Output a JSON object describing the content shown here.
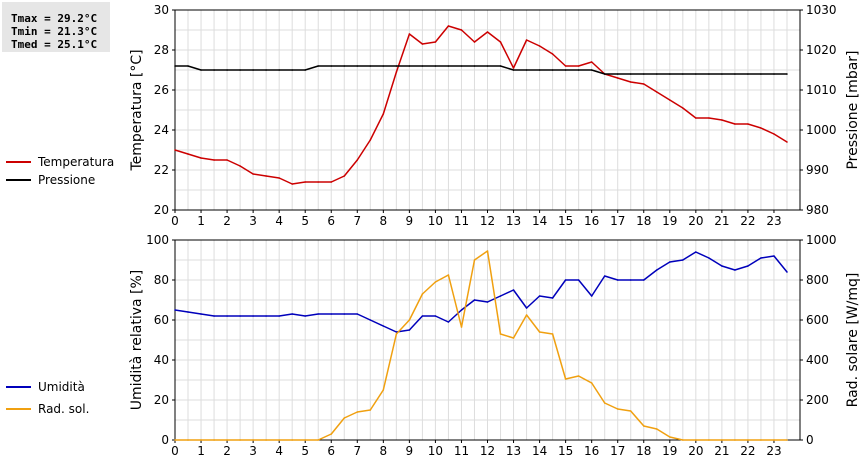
{
  "stats": {
    "tmax": "Tmax = 29.2°C",
    "tmin": "Tmin = 21.3°C",
    "tmed": "Tmed = 25.1°C"
  },
  "chart_data": [
    {
      "type": "line",
      "xlabel": "",
      "ylabel": "Temperatura [°C]",
      "ylabel_right": "Pressione [mbar]",
      "xlim": [
        0,
        24
      ],
      "ylim": [
        20,
        30
      ],
      "ylim_right": [
        980,
        1030
      ],
      "xticks": [
        0,
        1,
        2,
        3,
        4,
        5,
        6,
        7,
        8,
        9,
        10,
        11,
        12,
        13,
        14,
        15,
        16,
        17,
        18,
        19,
        20,
        21,
        22,
        23
      ],
      "yticks": [
        20,
        22,
        24,
        26,
        28,
        30
      ],
      "yticks_right": [
        980,
        990,
        1000,
        1010,
        1020,
        1030
      ],
      "grid": true,
      "legend_position": "left",
      "series": [
        {
          "name": "Temperatura",
          "color": "#cc0000",
          "axis": "left",
          "x": [
            0,
            0.5,
            1,
            1.5,
            2,
            2.5,
            3,
            3.5,
            4,
            4.5,
            5,
            5.5,
            6,
            6.5,
            7,
            7.5,
            8,
            8.5,
            9,
            9.5,
            10,
            10.5,
            11,
            11.5,
            12,
            12.5,
            13,
            13.5,
            14,
            14.5,
            15,
            15.5,
            16,
            16.5,
            17,
            17.5,
            18,
            18.5,
            19,
            19.5,
            20,
            20.5,
            21,
            21.5,
            22,
            22.5,
            23,
            23.5
          ],
          "values": [
            23.0,
            22.8,
            22.6,
            22.5,
            22.5,
            22.2,
            21.8,
            21.7,
            21.6,
            21.3,
            21.4,
            21.4,
            21.4,
            21.7,
            22.5,
            23.5,
            24.8,
            26.9,
            28.8,
            28.3,
            28.4,
            29.2,
            29.0,
            28.4,
            28.9,
            28.4,
            27.1,
            28.5,
            28.2,
            27.8,
            27.2,
            27.2,
            27.4,
            26.8,
            26.6,
            26.4,
            26.3,
            25.9,
            25.5,
            25.1,
            24.6,
            24.6,
            24.5,
            24.3,
            24.3,
            24.1,
            23.8,
            23.4
          ]
        },
        {
          "name": "Pressione",
          "color": "#000000",
          "axis": "right",
          "x": [
            0,
            0.5,
            1,
            1.5,
            2,
            2.5,
            3,
            3.5,
            4,
            4.5,
            5,
            5.5,
            6,
            6.5,
            7,
            7.5,
            8,
            8.5,
            9,
            9.5,
            10,
            10.5,
            11,
            11.5,
            12,
            12.5,
            13,
            13.5,
            14,
            14.5,
            15,
            15.5,
            16,
            16.5,
            17,
            17.5,
            18,
            18.5,
            19,
            19.5,
            20,
            20.5,
            21,
            21.5,
            22,
            22.5,
            23,
            23.5
          ],
          "values": [
            1016,
            1016,
            1015,
            1015,
            1015,
            1015,
            1015,
            1015,
            1015,
            1015,
            1015,
            1016,
            1016,
            1016,
            1016,
            1016,
            1016,
            1016,
            1016,
            1016,
            1016,
            1016,
            1016,
            1016,
            1016,
            1016,
            1015,
            1015,
            1015,
            1015,
            1015,
            1015,
            1015,
            1014,
            1014,
            1014,
            1014,
            1014,
            1014,
            1014,
            1014,
            1014,
            1014,
            1014,
            1014,
            1014,
            1014,
            1014
          ]
        }
      ]
    },
    {
      "type": "line",
      "xlabel": "",
      "ylabel": "Umidità relativa [%]",
      "ylabel_right": "Rad. solare [W/mq]",
      "xlim": [
        0,
        24
      ],
      "ylim": [
        0,
        100
      ],
      "ylim_right": [
        0,
        1000
      ],
      "xticks": [
        0,
        1,
        2,
        3,
        4,
        5,
        6,
        7,
        8,
        9,
        10,
        11,
        12,
        13,
        14,
        15,
        16,
        17,
        18,
        19,
        20,
        21,
        22,
        23
      ],
      "yticks": [
        0,
        20,
        40,
        60,
        80,
        100
      ],
      "yticks_right": [
        0,
        200,
        400,
        600,
        800,
        1000
      ],
      "grid": true,
      "legend_position": "left",
      "series": [
        {
          "name": "Umidità",
          "color": "#0000bb",
          "axis": "left",
          "x": [
            0,
            0.5,
            1,
            1.5,
            2,
            2.5,
            3,
            3.5,
            4,
            4.5,
            5,
            5.5,
            6,
            6.5,
            7,
            7.5,
            8,
            8.5,
            9,
            9.5,
            10,
            10.5,
            11,
            11.5,
            12,
            12.5,
            13,
            13.5,
            14,
            14.5,
            15,
            15.5,
            16,
            16.5,
            17,
            17.5,
            18,
            18.5,
            19,
            19.5,
            20,
            20.5,
            21,
            21.5,
            22,
            22.5,
            23,
            23.5
          ],
          "values": [
            65,
            64,
            63,
            62,
            62,
            62,
            62,
            62,
            62,
            63,
            62,
            63,
            63,
            63,
            63,
            60,
            57,
            54,
            55,
            62,
            62,
            59,
            65,
            70,
            69,
            72,
            75,
            66,
            72,
            71,
            80,
            80,
            72,
            82,
            80,
            80,
            80,
            85,
            89,
            90,
            94,
            91,
            87,
            85,
            87,
            91,
            92,
            84
          ]
        },
        {
          "name": "Rad. sol.",
          "color": "#f0a010",
          "axis": "right",
          "x": [
            0,
            0.5,
            1,
            1.5,
            2,
            2.5,
            3,
            3.5,
            4,
            4.5,
            5,
            5.5,
            6,
            6.5,
            7,
            7.5,
            8,
            8.5,
            9,
            9.5,
            10,
            10.5,
            11,
            11.5,
            12,
            12.5,
            13,
            13.5,
            14,
            14.5,
            15,
            15.5,
            16,
            16.5,
            17,
            17.5,
            18,
            18.5,
            19,
            19.5,
            20,
            20.5,
            21,
            21.5,
            22,
            22.5,
            23,
            23.5
          ],
          "values": [
            0,
            0,
            0,
            0,
            0,
            0,
            0,
            0,
            0,
            0,
            0,
            0,
            30,
            110,
            140,
            150,
            250,
            530,
            600,
            730,
            790,
            825,
            565,
            900,
            945,
            530,
            510,
            625,
            540,
            530,
            305,
            320,
            285,
            185,
            155,
            145,
            70,
            55,
            15,
            0,
            0,
            0,
            0,
            0,
            0,
            0,
            0,
            0
          ]
        }
      ]
    }
  ]
}
